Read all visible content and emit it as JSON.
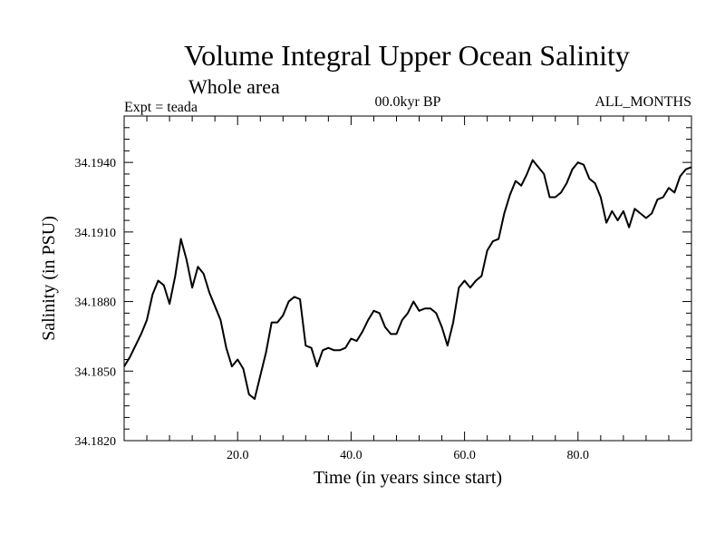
{
  "chart_data": {
    "type": "line",
    "title": "Volume Integral Upper Ocean Salinity",
    "subtitle": "Whole area",
    "experiment": "Expt = teada",
    "period": "00.0kyr BP",
    "months": "ALL_MONTHS",
    "xlabel": "Time (in years since start)",
    "ylabel": "Salinity (in PSU)",
    "xlim": [
      0,
      100
    ],
    "ylim": [
      34.182,
      34.196
    ],
    "x_ticks": [
      20,
      40,
      60,
      80
    ],
    "x_tick_labels": [
      "20.0",
      "40.0",
      "60.0",
      "80.0"
    ],
    "y_ticks": [
      34.182,
      34.185,
      34.188,
      34.191,
      34.194
    ],
    "y_tick_labels": [
      "34.1820",
      "34.1850",
      "34.1880",
      "34.1910",
      "34.1940"
    ],
    "color": "#000000",
    "series": [
      {
        "name": "Salinity",
        "x": [
          0,
          1,
          2,
          3,
          4,
          5,
          6,
          7,
          8,
          9,
          10,
          11,
          12,
          13,
          14,
          15,
          16,
          17,
          18,
          19,
          20,
          21,
          22,
          23,
          24,
          25,
          26,
          27,
          28,
          29,
          30,
          31,
          32,
          33,
          34,
          35,
          36,
          37,
          38,
          39,
          40,
          41,
          42,
          43,
          44,
          45,
          46,
          47,
          48,
          49,
          50,
          51,
          52,
          53,
          54,
          55,
          56,
          57,
          58,
          59,
          60,
          61,
          62,
          63,
          64,
          65,
          66,
          67,
          68,
          69,
          70,
          71,
          72,
          73,
          74,
          75,
          76,
          77,
          78,
          79,
          80,
          81,
          82,
          83,
          84,
          85,
          86,
          87,
          88,
          89,
          90,
          91,
          92,
          93,
          94,
          95,
          96,
          97,
          98,
          99,
          100
        ],
        "values": [
          34.1852,
          34.1856,
          34.1861,
          34.1866,
          34.1872,
          34.1883,
          34.1889,
          34.1887,
          34.1879,
          34.1891,
          34.1907,
          34.1898,
          34.1886,
          34.1895,
          34.1892,
          34.1884,
          34.1878,
          34.1872,
          34.186,
          34.1852,
          34.1855,
          34.1851,
          34.184,
          34.1838,
          34.1848,
          34.1858,
          34.1871,
          34.1871,
          34.1874,
          34.188,
          34.1882,
          34.1881,
          34.1861,
          34.186,
          34.1852,
          34.1859,
          34.186,
          34.1859,
          34.1859,
          34.186,
          34.1864,
          34.1863,
          34.1867,
          34.1872,
          34.1876,
          34.1875,
          34.1869,
          34.1866,
          34.1866,
          34.1872,
          34.1875,
          34.188,
          34.1876,
          34.1877,
          34.1877,
          34.1875,
          34.1869,
          34.1861,
          34.1871,
          34.1886,
          34.1889,
          34.1886,
          34.1889,
          34.1891,
          34.1902,
          34.1906,
          34.1907,
          34.1918,
          34.1926,
          34.1932,
          34.193,
          34.1935,
          34.1941,
          34.1938,
          34.1935,
          34.1925,
          34.1925,
          34.1927,
          34.1931,
          34.1937,
          34.194,
          34.1939,
          34.1933,
          34.1931,
          34.1925,
          34.1914,
          34.1919,
          34.1915,
          34.1919,
          34.1912,
          34.192,
          34.1918,
          34.1916,
          34.1918,
          34.1924,
          34.1925,
          34.1929,
          34.1927,
          34.1934,
          34.1937,
          34.1938
        ]
      }
    ]
  }
}
